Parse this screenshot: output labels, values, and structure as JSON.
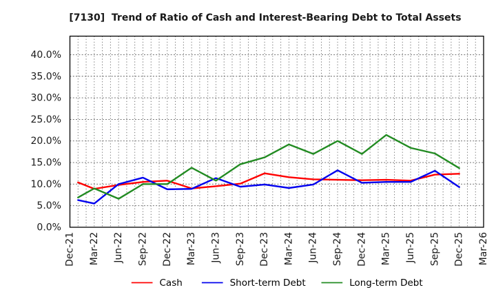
{
  "chart_data": {
    "type": "line",
    "title": "[7130]  Trend of Ratio of Cash and Interest-Bearing Debt to Total Assets",
    "x_tick_labels": [
      "Dec-21",
      "Mar-22",
      "Jun-22",
      "Sep-22",
      "Dec-22",
      "Mar-23",
      "Jun-23",
      "Sep-23",
      "Dec-23",
      "Mar-24",
      "Jun-24",
      "Sep-24",
      "Dec-24",
      "Mar-25",
      "Jun-25",
      "Sep-25",
      "Dec-25",
      "Mar-26"
    ],
    "y_tick_labels": [
      "0.0%",
      "5.0%",
      "10.0%",
      "15.0%",
      "20.0%",
      "25.0%",
      "30.0%",
      "35.0%",
      "40.0%"
    ],
    "y_tick_values": [
      0,
      5,
      10,
      15,
      20,
      25,
      30,
      35,
      40
    ],
    "ylim": [
      0,
      44.3
    ],
    "unit": "percent",
    "grid": true,
    "legend_position": "bottom",
    "series": [
      {
        "name": "Cash",
        "color": "#ff0000",
        "values": [
          10.4,
          8.9,
          9.8,
          10.5,
          10.8,
          9.0,
          9.5,
          10.1,
          12.5,
          11.6,
          11.1,
          11.0,
          10.9,
          11.0,
          10.8,
          12.2,
          12.4
        ]
      },
      {
        "name": "Short-term Debt",
        "color": "#0000ee",
        "values": [
          6.3,
          5.5,
          10.0,
          11.5,
          8.8,
          8.9,
          11.4,
          9.4,
          9.9,
          9.1,
          9.9,
          13.2,
          10.3,
          10.5,
          10.5,
          13.1,
          9.3
        ]
      },
      {
        "name": "Long-term Debt",
        "color": "#228b22",
        "values": [
          6.9,
          9.0,
          6.6,
          10.0,
          10.0,
          13.8,
          10.8,
          14.6,
          16.2,
          19.2,
          17.0,
          20.0,
          17.0,
          21.4,
          18.4,
          17.1,
          13.7
        ]
      }
    ],
    "notes": "17 quarterly data points from Dec-21 to Dec-25; no data at Mar-26. First point plotted one month after the Dec-21 tick."
  }
}
